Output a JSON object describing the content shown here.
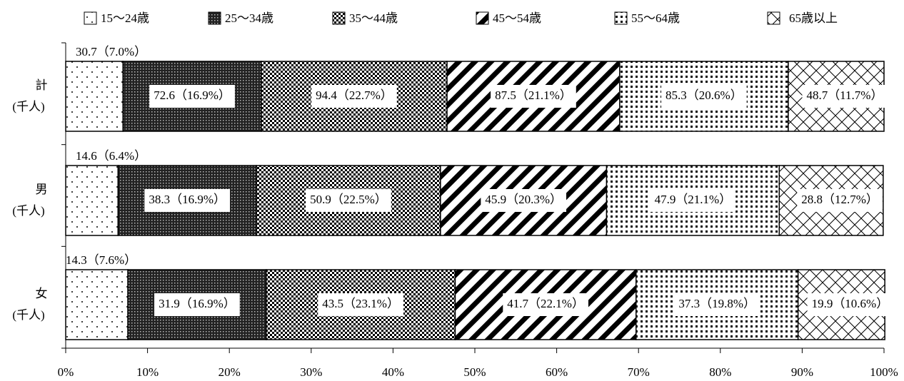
{
  "chart_data": {
    "type": "stacked_bar_horizontal",
    "categories": [
      [
        "計",
        "(千人)"
      ],
      [
        "男",
        "(千人)"
      ],
      [
        "女",
        "(千人)"
      ]
    ],
    "series": [
      {
        "name": "15～24歳",
        "values": [
          7.0,
          6.4,
          7.6
        ],
        "value_labels": [
          "30.7（7.0%）",
          "14.6（6.4%）",
          "14.3（7.6%）"
        ]
      },
      {
        "name": "25～34歳",
        "values": [
          16.9,
          16.9,
          16.9
        ],
        "value_labels": [
          "72.6（16.9%）",
          "38.3（16.9%）",
          "31.9（16.9%）"
        ]
      },
      {
        "name": "35～44歳",
        "values": [
          22.7,
          22.5,
          23.1
        ],
        "value_labels": [
          "94.4（22.7%）",
          "50.9（22.5%）",
          "43.5（23.1%）"
        ]
      },
      {
        "name": "45～54歳",
        "values": [
          21.1,
          20.3,
          22.1
        ],
        "value_labels": [
          "87.5（21.1%）",
          "45.9（20.3%）",
          "41.7（22.1%）"
        ]
      },
      {
        "name": "55～64歳",
        "values": [
          20.6,
          21.1,
          19.8
        ],
        "value_labels": [
          "85.3（20.6%）",
          "47.9（21.1%）",
          "37.3（19.8%）"
        ]
      },
      {
        "name": "65歳以上",
        "values": [
          11.7,
          12.7,
          10.6
        ],
        "value_labels": [
          "48.7（11.7%）",
          "28.8（12.7%）",
          "19.9（10.6%）"
        ]
      }
    ],
    "xlim": [
      0,
      100
    ],
    "xticks": [
      {
        "value": 0,
        "label": "0%"
      },
      {
        "value": 10,
        "label": "10%"
      },
      {
        "value": 20,
        "label": "20%"
      },
      {
        "value": 30,
        "label": "30%"
      },
      {
        "value": 40,
        "label": "40%"
      },
      {
        "value": 50,
        "label": "50%"
      },
      {
        "value": 60,
        "label": "60%"
      },
      {
        "value": 70,
        "label": "70%"
      },
      {
        "value": 80,
        "label": "80%"
      },
      {
        "value": 90,
        "label": "90%"
      },
      {
        "value": 100,
        "label": "100%"
      }
    ],
    "legend": "top"
  }
}
